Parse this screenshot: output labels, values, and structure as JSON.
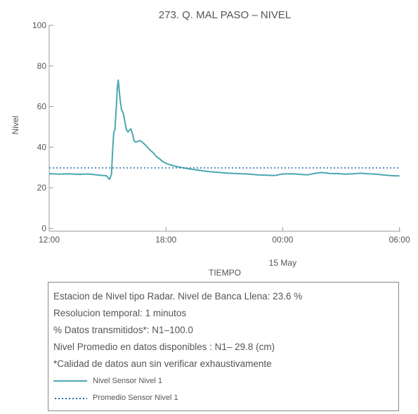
{
  "chart_data": {
    "type": "line",
    "title": "273. Q. MAL PASO – NIVEL",
    "xlabel": "TIEMPO",
    "ylabel": "Nivel",
    "ylim": [
      0,
      100
    ],
    "y_ticks": [
      0,
      20,
      40,
      60,
      80,
      100
    ],
    "x_ticks": [
      {
        "t": 0,
        "label": "12:00"
      },
      {
        "t": 6,
        "label": "18:00"
      },
      {
        "t": 12,
        "label": "00:00"
      },
      {
        "t": 18,
        "label": "06:00"
      }
    ],
    "x_sublabel": {
      "t": 12,
      "label": "15 May"
    },
    "xlim": [
      0,
      18.05
    ],
    "series": [
      {
        "name": "Nivel Sensor Nivel 1",
        "color": "#4aa7b1",
        "style": "solid",
        "points": [
          [
            0.0,
            27.0
          ],
          [
            0.5,
            26.7
          ],
          [
            1.0,
            26.9
          ],
          [
            1.5,
            26.6
          ],
          [
            2.0,
            26.8
          ],
          [
            2.5,
            26.3
          ],
          [
            2.95,
            25.9
          ],
          [
            3.05,
            24.6
          ],
          [
            3.1,
            24.2
          ],
          [
            3.2,
            26.5
          ],
          [
            3.27,
            40.0
          ],
          [
            3.32,
            47.5
          ],
          [
            3.38,
            48.5
          ],
          [
            3.45,
            60.0
          ],
          [
            3.5,
            69.0
          ],
          [
            3.55,
            73.0
          ],
          [
            3.6,
            68.0
          ],
          [
            3.65,
            63.0
          ],
          [
            3.72,
            58.5
          ],
          [
            3.8,
            57.0
          ],
          [
            3.88,
            53.0
          ],
          [
            3.97,
            48.5
          ],
          [
            4.05,
            47.5
          ],
          [
            4.13,
            48.5
          ],
          [
            4.2,
            49.0
          ],
          [
            4.28,
            46.5
          ],
          [
            4.37,
            43.0
          ],
          [
            4.45,
            42.5
          ],
          [
            4.55,
            42.8
          ],
          [
            4.65,
            43.2
          ],
          [
            4.75,
            42.8
          ],
          [
            4.9,
            41.5
          ],
          [
            5.05,
            40.0
          ],
          [
            5.2,
            38.5
          ],
          [
            5.35,
            37.2
          ],
          [
            5.5,
            35.5
          ],
          [
            5.7,
            34.0
          ],
          [
            5.9,
            32.5
          ],
          [
            6.1,
            31.7
          ],
          [
            6.4,
            30.8
          ],
          [
            6.8,
            30.0
          ],
          [
            7.2,
            29.3
          ],
          [
            7.7,
            28.6
          ],
          [
            8.2,
            28.0
          ],
          [
            8.7,
            27.6
          ],
          [
            9.2,
            27.2
          ],
          [
            9.7,
            27.0
          ],
          [
            10.2,
            26.8
          ],
          [
            10.7,
            26.4
          ],
          [
            11.2,
            26.2
          ],
          [
            11.6,
            26.1
          ],
          [
            12.0,
            26.8
          ],
          [
            12.5,
            26.9
          ],
          [
            12.9,
            26.6
          ],
          [
            13.3,
            26.4
          ],
          [
            13.7,
            27.2
          ],
          [
            14.0,
            27.5
          ],
          [
            14.4,
            27.1
          ],
          [
            14.8,
            27.0
          ],
          [
            15.2,
            26.7
          ],
          [
            15.6,
            26.9
          ],
          [
            16.0,
            27.2
          ],
          [
            16.4,
            26.9
          ],
          [
            16.8,
            26.7
          ],
          [
            17.2,
            26.3
          ],
          [
            17.6,
            26.0
          ],
          [
            18.0,
            25.8
          ]
        ]
      },
      {
        "name": "Promedio Sensor Nivel 1",
        "color": "#2a6e9e",
        "style": "dotted",
        "points": [
          [
            0.0,
            29.8
          ],
          [
            18.05,
            29.8
          ]
        ]
      }
    ]
  },
  "info": {
    "lines": [
      "Estacion de Nivel tipo Radar. Nivel de Banca Llena: 23.6 %",
      "Resolucion temporal: 1 minutos",
      "% Datos transmitidos*: N1–100.0",
      "Nivel Promedio en datos disponibles : N1– 29.8 (cm)",
      "*Calidad de datos aun sin verificar exhaustivamente"
    ],
    "legend": [
      {
        "label": "Nivel Sensor Nivel 1",
        "style": "solid",
        "color": "#4aa7b1"
      },
      {
        "label": "Promedio Sensor Nivel 1",
        "style": "dotted",
        "color": "#2a6e9e"
      }
    ]
  }
}
